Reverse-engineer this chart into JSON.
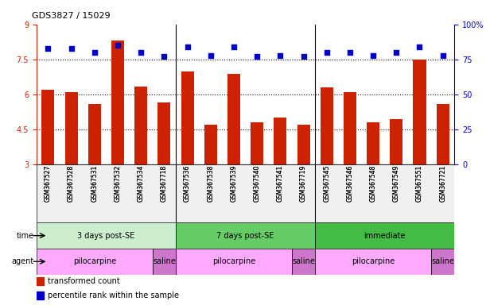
{
  "title": "GDS3827 / 15029",
  "samples": [
    "GSM367527",
    "GSM367528",
    "GSM367531",
    "GSM367532",
    "GSM367534",
    "GSM367718",
    "GSM367536",
    "GSM367538",
    "GSM367539",
    "GSM367540",
    "GSM367541",
    "GSM367719",
    "GSM367545",
    "GSM367546",
    "GSM367548",
    "GSM367549",
    "GSM367551",
    "GSM367721"
  ],
  "bar_values": [
    6.2,
    6.1,
    5.6,
    8.3,
    6.35,
    5.65,
    7.0,
    4.7,
    6.9,
    4.8,
    5.0,
    4.7,
    6.3,
    6.1,
    4.8,
    4.95,
    7.5,
    5.6
  ],
  "dot_values": [
    83,
    83,
    80,
    85,
    80,
    77,
    84,
    78,
    84,
    77,
    78,
    77,
    80,
    80,
    78,
    80,
    84,
    78
  ],
  "ymin": 3,
  "ymax": 9,
  "yticks": [
    3,
    4.5,
    6,
    7.5,
    9
  ],
  "right_yticks": [
    0,
    25,
    50,
    75,
    100
  ],
  "dotted_lines": [
    4.5,
    6.0,
    7.5
  ],
  "bar_color": "#cc2200",
  "dot_color": "#0000cc",
  "bg_color": "#ffffff",
  "time_groups": [
    {
      "label": "3 days post-SE",
      "start": 0,
      "end": 5,
      "color": "#cceecc"
    },
    {
      "label": "7 days post-SE",
      "start": 6,
      "end": 11,
      "color": "#66cc66"
    },
    {
      "label": "immediate",
      "start": 12,
      "end": 17,
      "color": "#44bb44"
    }
  ],
  "agent_groups": [
    {
      "label": "pilocarpine",
      "start": 0,
      "end": 4,
      "color": "#ffaaff"
    },
    {
      "label": "saline",
      "start": 5,
      "end": 5,
      "color": "#cc77cc"
    },
    {
      "label": "pilocarpine",
      "start": 6,
      "end": 10,
      "color": "#ffaaff"
    },
    {
      "label": "saline",
      "start": 11,
      "end": 11,
      "color": "#cc77cc"
    },
    {
      "label": "pilocarpine",
      "start": 12,
      "end": 16,
      "color": "#ffaaff"
    },
    {
      "label": "saline",
      "start": 17,
      "end": 17,
      "color": "#cc77cc"
    }
  ],
  "legend_items": [
    {
      "label": "transformed count",
      "color": "#cc2200"
    },
    {
      "label": "percentile rank within the sample",
      "color": "#0000cc"
    }
  ]
}
